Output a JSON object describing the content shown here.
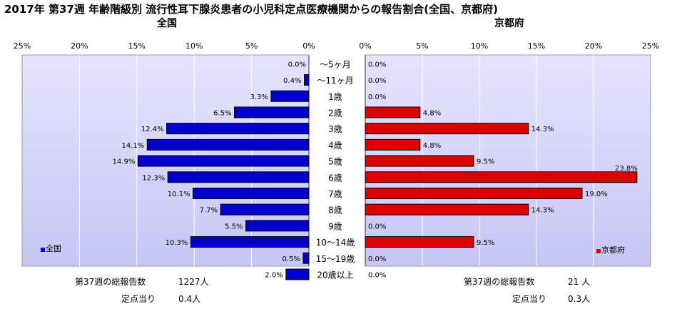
{
  "title": "2017年 第37週 年齢階級別 流行性耳下腺炎患者の小児科定点医療機関からの報告割合(全国、京都府)",
  "chart_data": {
    "type": "bar",
    "orientation": "horizontal",
    "categories": [
      "～5ヶ月",
      "～11ヶ月",
      "1歳",
      "2歳",
      "3歳",
      "4歳",
      "5歳",
      "6歳",
      "7歳",
      "8歳",
      "9歳",
      "10～14歳",
      "15～19歳",
      "20歳以上"
    ],
    "axis_ticks": [
      "25%",
      "20%",
      "15%",
      "10%",
      "5%",
      "0%"
    ],
    "axis_ticks_right": [
      "0%",
      "5%",
      "10%",
      "15%",
      "20%",
      "25%"
    ],
    "xlim": [
      0,
      25
    ],
    "grid": true,
    "series": [
      {
        "name": "全国",
        "panel_title": "全国",
        "color": "#0000cc",
        "values": [
          0.0,
          0.4,
          3.3,
          6.5,
          12.4,
          14.1,
          14.9,
          12.3,
          10.1,
          7.7,
          5.5,
          10.3,
          0.5,
          2.0
        ],
        "labels": [
          "0.0%",
          "0.4%",
          "3.3%",
          "6.5%",
          "12.4%",
          "14.1%",
          "14.9%",
          "12.3%",
          "10.1%",
          "7.7%",
          "5.5%",
          "10.3%",
          "0.5%",
          "2.0%"
        ],
        "legend": "bottom-left"
      },
      {
        "name": "京都府",
        "panel_title": "京都府",
        "color": "#dd0000",
        "values": [
          0.0,
          0.0,
          0.0,
          4.8,
          14.3,
          4.8,
          9.5,
          23.8,
          19.0,
          14.3,
          0.0,
          9.5,
          0.0,
          0.0
        ],
        "labels": [
          "0.0%",
          "0.0%",
          "0.0%",
          "4.8%",
          "14.3%",
          "4.8%",
          "9.5%",
          "23.8%",
          "19.0%",
          "14.3%",
          "0.0%",
          "9.5%",
          "0.0%",
          "0.0%"
        ],
        "legend": "bottom-right"
      }
    ]
  },
  "stats": {
    "national": {
      "total_label": "第37週の総報告数",
      "total_value": "1227人",
      "per_label": "定点当り",
      "per_value": "0.4人"
    },
    "kyoto": {
      "total_label": "第37週の総報告数",
      "total_value": "21 人",
      "per_label": "定点当り",
      "per_value": "0.3人"
    }
  }
}
